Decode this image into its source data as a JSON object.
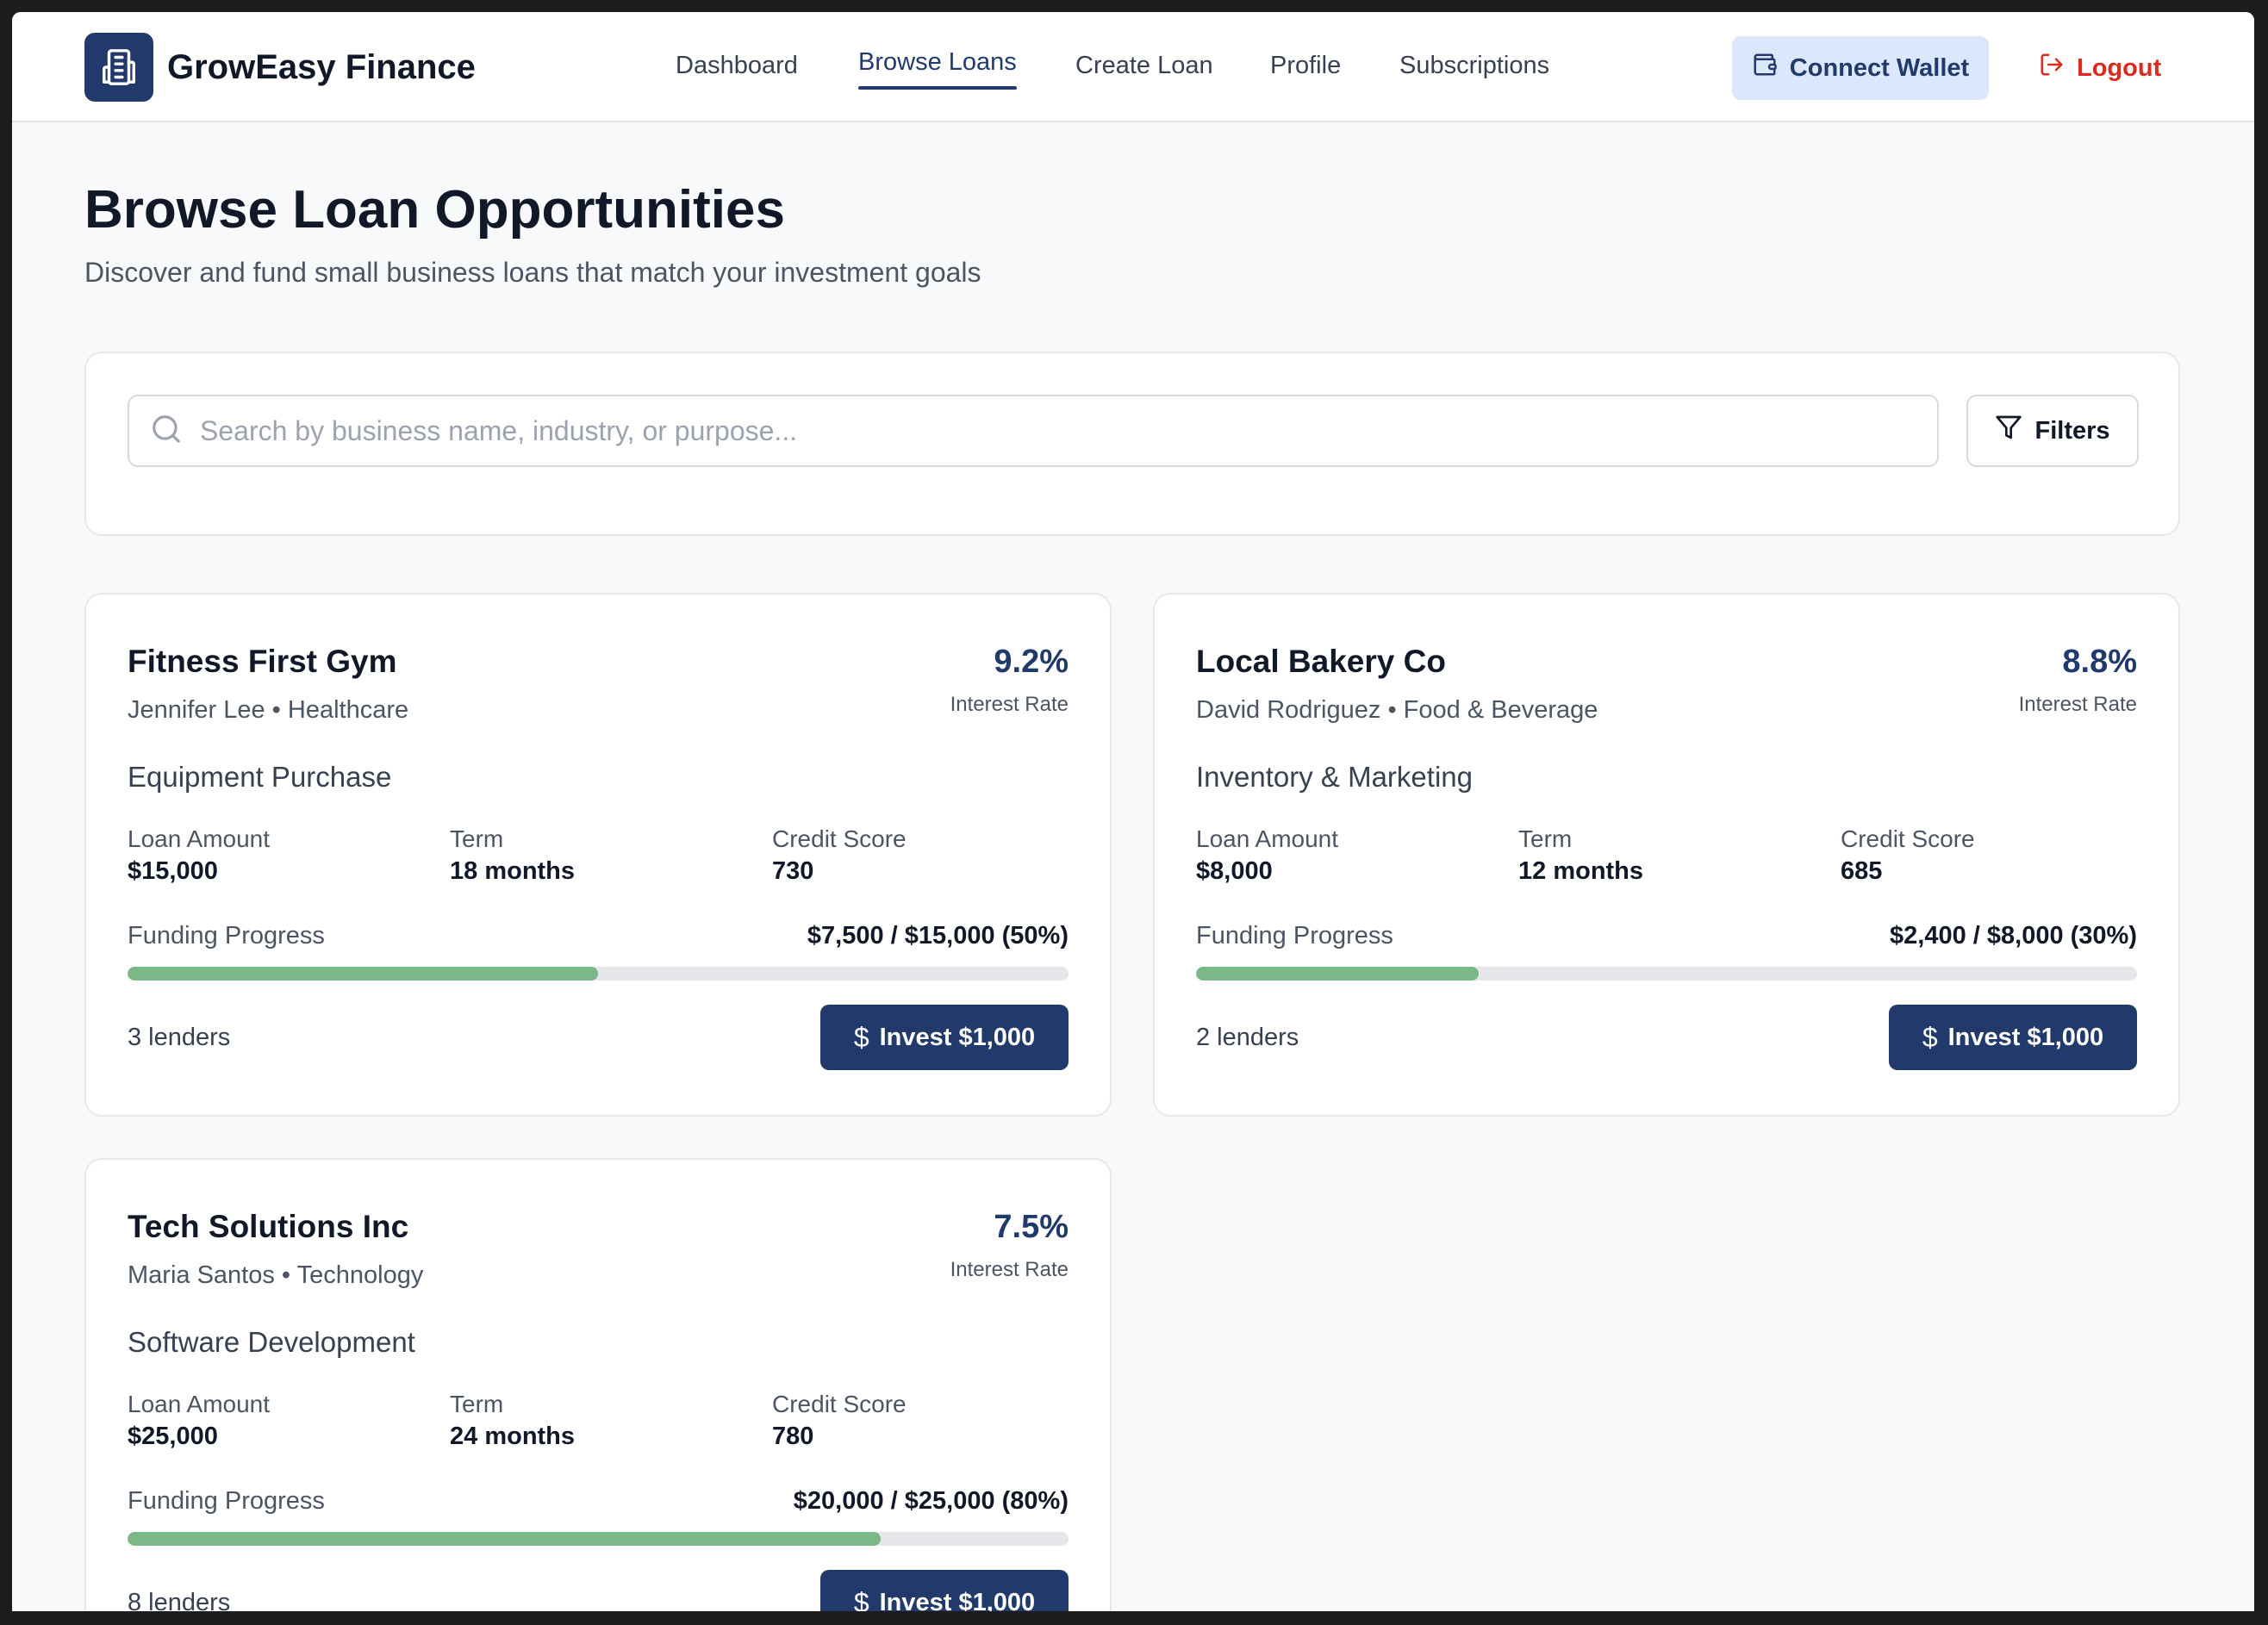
{
  "brand": {
    "name": "GrowEasy Finance",
    "logo_icon": "building-icon"
  },
  "nav": {
    "items": [
      {
        "label": "Dashboard",
        "active": false
      },
      {
        "label": "Browse Loans",
        "active": true
      },
      {
        "label": "Create Loan",
        "active": false
      },
      {
        "label": "Profile",
        "active": false
      },
      {
        "label": "Subscriptions",
        "active": false
      }
    ],
    "connect_wallet": "Connect Wallet",
    "logout": "Logout"
  },
  "page": {
    "title": "Browse Loan Opportunities",
    "subtitle": "Discover and fund small business loans that match your investment goals"
  },
  "search": {
    "placeholder": "Search by business name, industry, or purpose...",
    "value": "",
    "filters_label": "Filters"
  },
  "loans": [
    {
      "business": "Fitness First Gym",
      "owner": "Jennifer Lee",
      "industry": "Healthcare",
      "rate": "9.2%",
      "rate_label": "Interest Rate",
      "purpose": "Equipment Purchase",
      "amount_label": "Loan Amount",
      "amount": "$15,000",
      "term_label": "Term",
      "term": "18 months",
      "credit_label": "Credit Score",
      "credit": "730",
      "progress_label": "Funding Progress",
      "progress_text": "$7,500 / $15,000 (50%)",
      "progress_fraction": 0.5,
      "lenders": "3 lenders",
      "invest_label": "Invest $1,000"
    },
    {
      "business": "Local Bakery Co",
      "owner": "David Rodriguez",
      "industry": "Food & Beverage",
      "rate": "8.8%",
      "rate_label": "Interest Rate",
      "purpose": "Inventory & Marketing",
      "amount_label": "Loan Amount",
      "amount": "$8,000",
      "term_label": "Term",
      "term": "12 months",
      "credit_label": "Credit Score",
      "credit": "685",
      "progress_label": "Funding Progress",
      "progress_text": "$2,400 / $8,000 (30%)",
      "progress_fraction": 0.3,
      "lenders": "2 lenders",
      "invest_label": "Invest $1,000"
    },
    {
      "business": "Tech Solutions Inc",
      "owner": "Maria Santos",
      "industry": "Technology",
      "rate": "7.5%",
      "rate_label": "Interest Rate",
      "purpose": "Software Development",
      "amount_label": "Loan Amount",
      "amount": "$25,000",
      "term_label": "Term",
      "term": "24 months",
      "credit_label": "Credit Score",
      "credit": "780",
      "progress_label": "Funding Progress",
      "progress_text": "$20,000 / $25,000 (80%)",
      "progress_fraction": 0.8,
      "lenders": "8 lenders",
      "invest_label": "Invest $1,000"
    }
  ],
  "colors": {
    "primary": "#223a6b",
    "wallet_bg": "#dbe7fb",
    "logout": "#d92d20",
    "progress_fill": "#7ab887",
    "progress_track": "#e5e7eb",
    "page_bg": "#f8f9fa"
  }
}
